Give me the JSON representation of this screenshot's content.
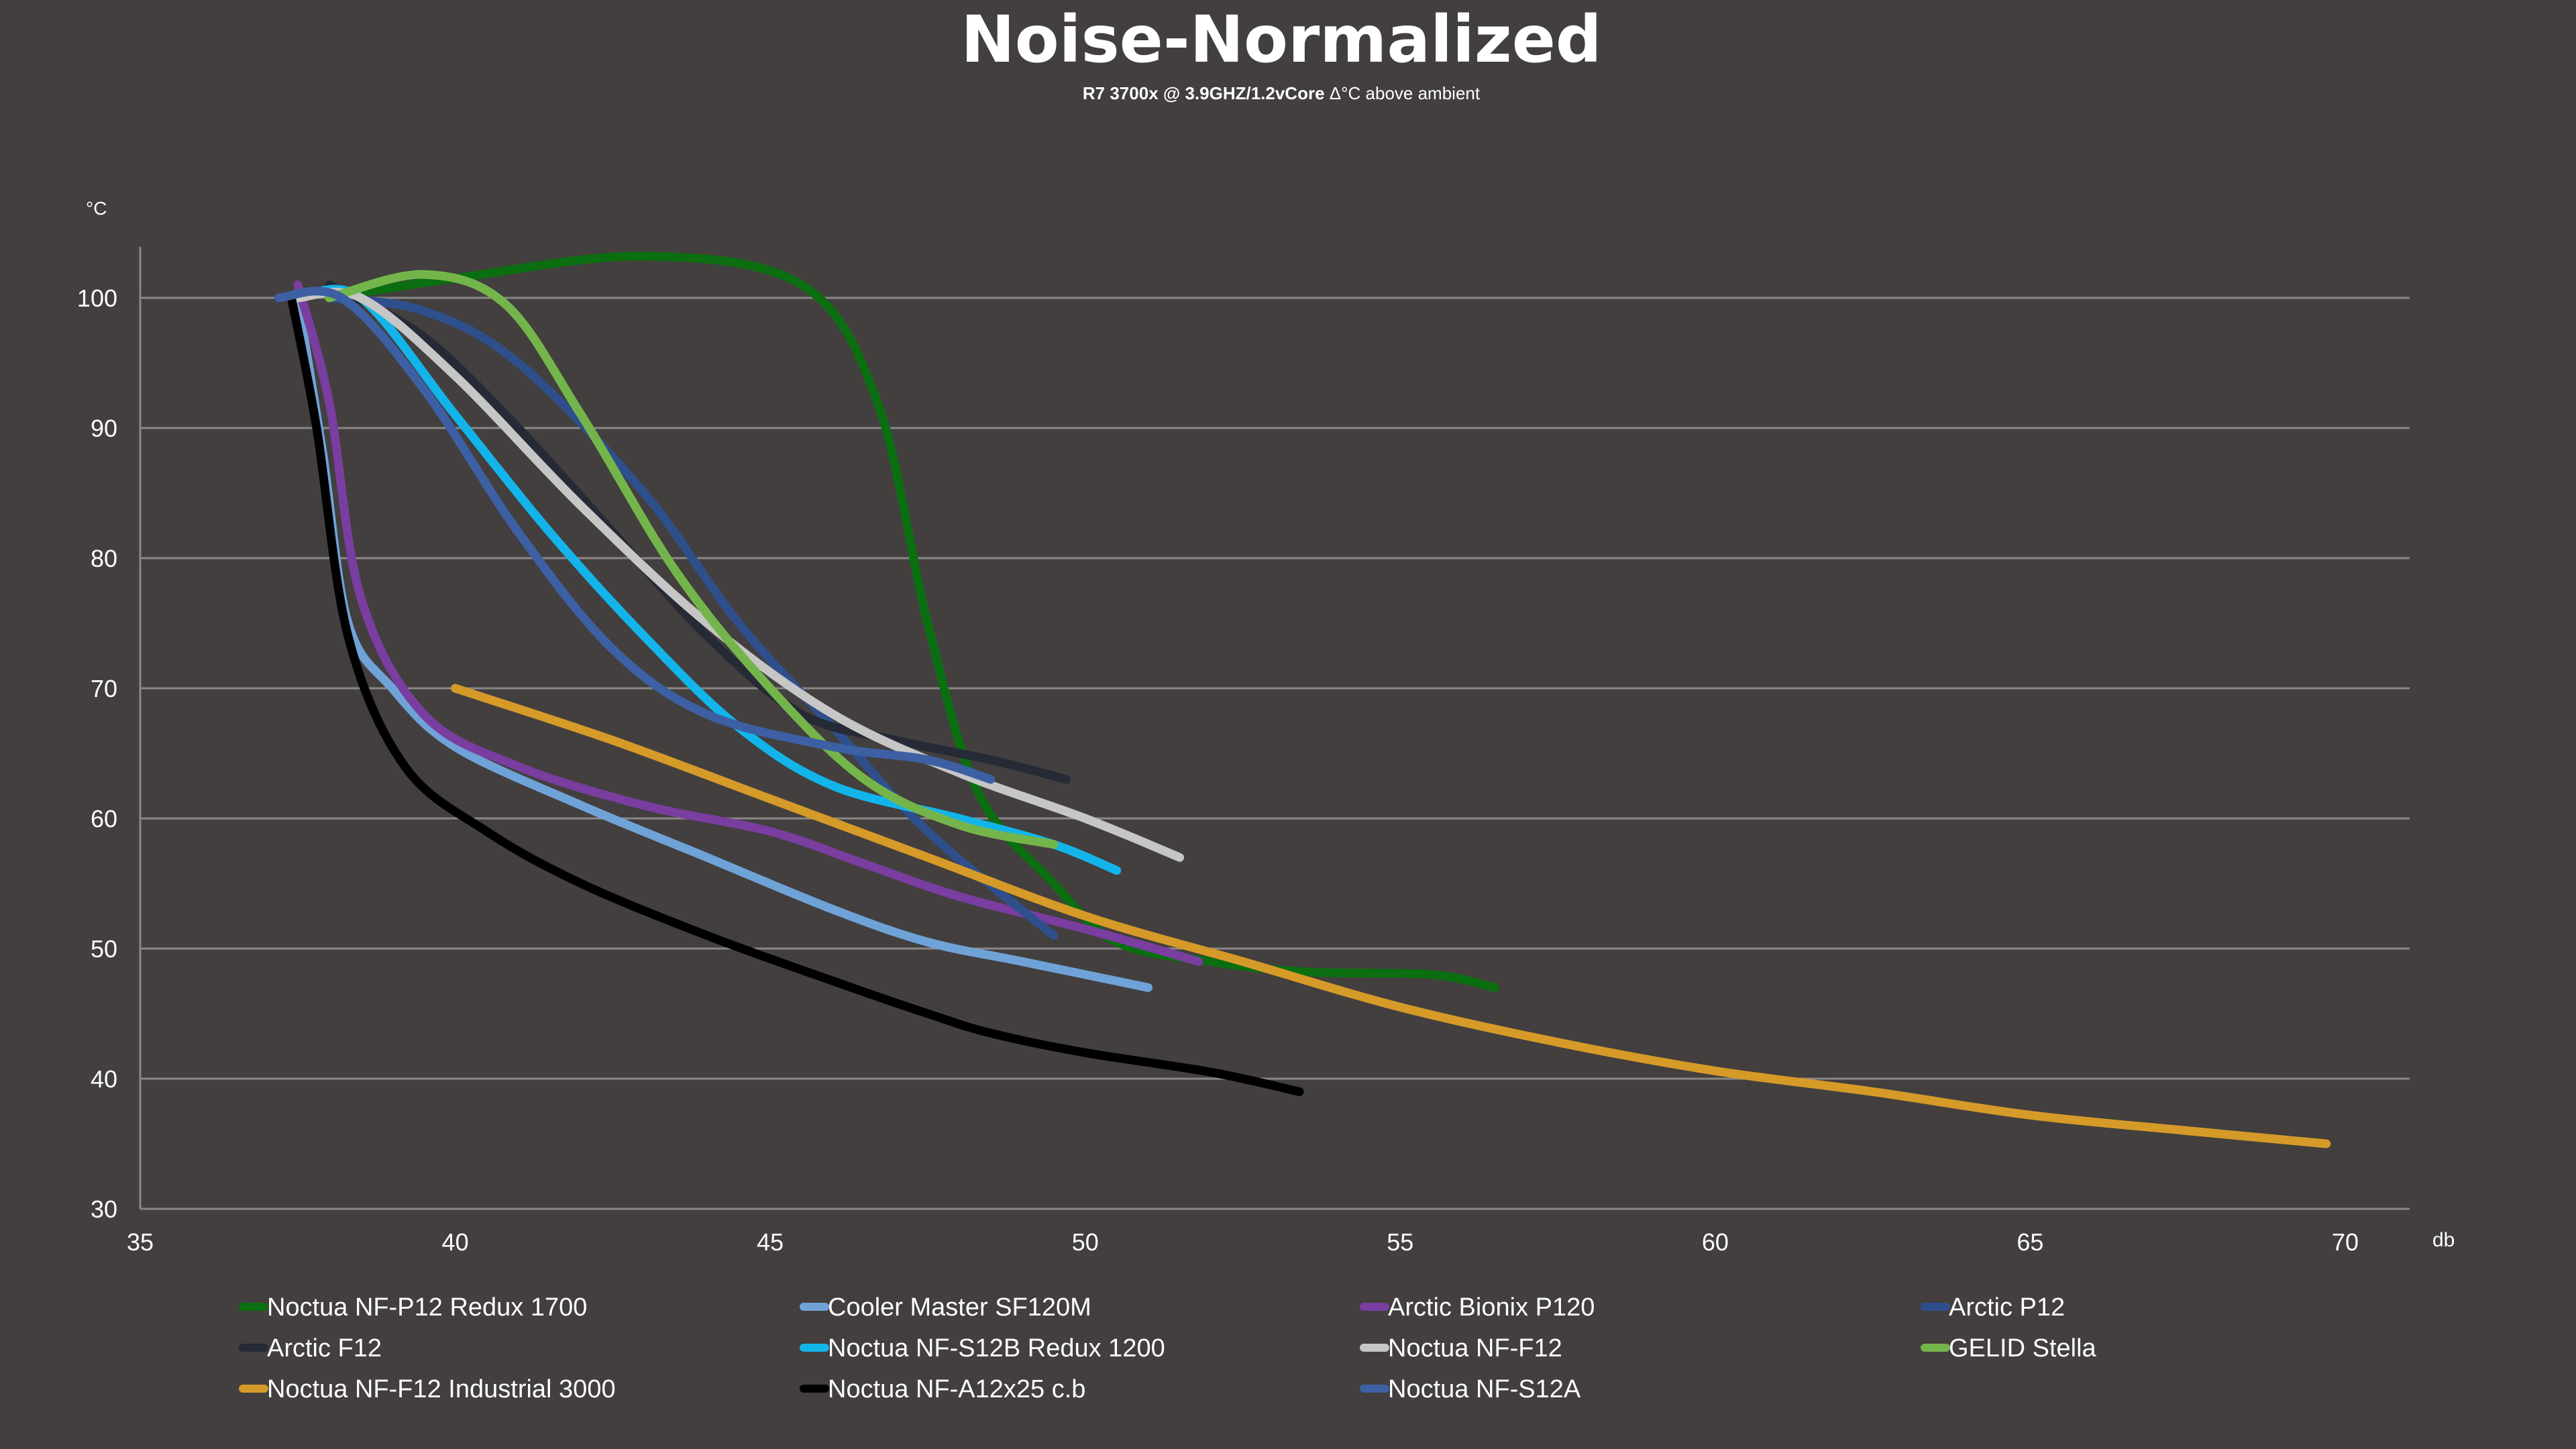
{
  "chart_data": {
    "type": "line",
    "title": "Noise-Normalized",
    "subtitle_bold": "R7 3700x @ 3.9GHZ/1.2vCore",
    "subtitle_rest": " Δ°C above ambient",
    "ylabel": "°C",
    "xlabel": "db",
    "xlim": [
      35,
      70
    ],
    "ylim": [
      30,
      104
    ],
    "xticks": [
      35,
      40,
      45,
      50,
      55,
      60,
      65,
      70
    ],
    "yticks": [
      30,
      40,
      50,
      60,
      70,
      80,
      90,
      100
    ],
    "grid": true,
    "legend_position": "bottom",
    "series": [
      {
        "name": "Noctua NF-P12 Redux 1700",
        "color": "#0b6e10",
        "points": [
          [
            38,
            100
          ],
          [
            40,
            101.5
          ],
          [
            43,
            103.2
          ],
          [
            45.5,
            101
          ],
          [
            46.7,
            92
          ],
          [
            47.5,
            75
          ],
          [
            48.3,
            62
          ],
          [
            49.5,
            55
          ],
          [
            50.5,
            50.5
          ],
          [
            52,
            49
          ],
          [
            53.5,
            48.2
          ],
          [
            55.5,
            48
          ],
          [
            56.5,
            47
          ]
        ]
      },
      {
        "name": "Cooler Master SF120M",
        "color": "#6fa3d8",
        "points": [
          [
            37.5,
            100
          ],
          [
            37.9,
            88
          ],
          [
            38.3,
            75
          ],
          [
            39,
            70
          ],
          [
            40,
            65.5
          ],
          [
            42,
            61
          ],
          [
            44,
            57
          ],
          [
            46,
            53
          ],
          [
            47.5,
            50.5
          ],
          [
            49,
            49
          ],
          [
            51,
            47
          ]
        ]
      },
      {
        "name": "Arctic Bionix P120",
        "color": "#7a3da0",
        "points": [
          [
            37.5,
            101
          ],
          [
            38,
            92
          ],
          [
            38.5,
            77
          ],
          [
            39.5,
            68
          ],
          [
            41,
            64
          ],
          [
            43,
            61
          ],
          [
            45,
            59
          ],
          [
            46.5,
            56.5
          ],
          [
            48,
            54
          ],
          [
            50,
            51.5
          ],
          [
            51.8,
            49
          ]
        ]
      },
      {
        "name": "Arctic P12",
        "color": "#2f4f8c",
        "points": [
          [
            38,
            100
          ],
          [
            39.5,
            99
          ],
          [
            41,
            95
          ],
          [
            43,
            85
          ],
          [
            44.5,
            75
          ],
          [
            46,
            67
          ],
          [
            47.5,
            59
          ],
          [
            49.5,
            51
          ]
        ]
      },
      {
        "name": "Arctic F12",
        "color": "#262a36",
        "points": [
          [
            38,
            101
          ],
          [
            39.5,
            97
          ],
          [
            41,
            90
          ],
          [
            42.5,
            82
          ],
          [
            44,
            74
          ],
          [
            45.5,
            68
          ],
          [
            47,
            66
          ],
          [
            48.5,
            64.5
          ],
          [
            49.7,
            63
          ]
        ]
      },
      {
        "name": "Noctua NF-S12B Redux 1200",
        "color": "#13b4ea",
        "points": [
          [
            37.5,
            100
          ],
          [
            38.5,
            100
          ],
          [
            40,
            91
          ],
          [
            41.5,
            82
          ],
          [
            43,
            74
          ],
          [
            44.5,
            67
          ],
          [
            46,
            62.5
          ],
          [
            48,
            60
          ],
          [
            49.5,
            58
          ],
          [
            50.5,
            56
          ]
        ]
      },
      {
        "name": "Noctua NF-F12",
        "color": "#c6c6c6",
        "points": [
          [
            37.5,
            100
          ],
          [
            38.5,
            100
          ],
          [
            40,
            94
          ],
          [
            42,
            84
          ],
          [
            44,
            75
          ],
          [
            46,
            68
          ],
          [
            48,
            63.5
          ],
          [
            50,
            60
          ],
          [
            51.5,
            57
          ]
        ]
      },
      {
        "name": "GELID Stella",
        "color": "#74b54b",
        "points": [
          [
            38,
            100
          ],
          [
            39.5,
            101.8
          ],
          [
            40.8,
            99.5
          ],
          [
            42,
            91
          ],
          [
            43.5,
            79
          ],
          [
            45,
            70
          ],
          [
            46.5,
            63
          ],
          [
            48,
            59.5
          ],
          [
            49.5,
            58
          ]
        ]
      },
      {
        "name": "Noctua NF-F12 Industrial 3000",
        "color": "#d69a28",
        "points": [
          [
            40,
            70
          ],
          [
            42.5,
            66
          ],
          [
            45,
            61.5
          ],
          [
            47.5,
            57
          ],
          [
            50,
            52.5
          ],
          [
            52.5,
            49
          ],
          [
            55,
            45.5
          ],
          [
            57.5,
            42.8
          ],
          [
            60,
            40.6
          ],
          [
            62.5,
            39
          ],
          [
            65,
            37.2
          ],
          [
            67.5,
            36
          ],
          [
            69.7,
            35
          ]
        ]
      },
      {
        "name": "Noctua NF-A12x25 c.b",
        "color": "#000000",
        "points": [
          [
            37.4,
            100
          ],
          [
            37.8,
            90
          ],
          [
            38.3,
            74
          ],
          [
            39.2,
            64
          ],
          [
            40.5,
            59
          ],
          [
            42,
            55
          ],
          [
            44,
            51
          ],
          [
            46,
            47.5
          ],
          [
            47.5,
            45
          ],
          [
            48.5,
            43.5
          ],
          [
            50,
            42
          ],
          [
            52,
            40.5
          ],
          [
            53.4,
            39
          ]
        ]
      },
      {
        "name": "Noctua NF-S12A",
        "color": "#3d60a4",
        "points": [
          [
            37.2,
            100
          ],
          [
            38.2,
            100
          ],
          [
            39.5,
            93
          ],
          [
            41,
            82
          ],
          [
            42.5,
            73
          ],
          [
            44,
            68
          ],
          [
            46,
            65.5
          ],
          [
            47.5,
            64.5
          ],
          [
            48.5,
            63
          ]
        ]
      }
    ]
  }
}
